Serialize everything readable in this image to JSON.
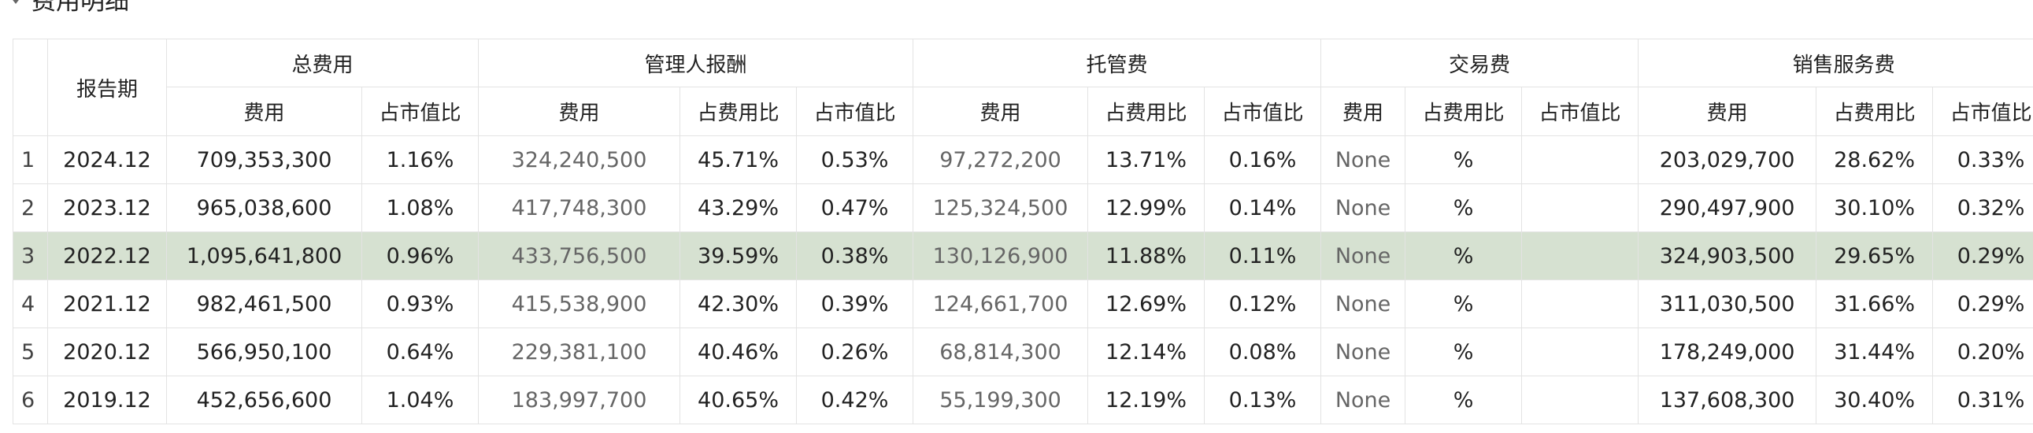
{
  "section": {
    "title": "费用明细"
  },
  "table": {
    "groups": [
      {
        "label": "总费用"
      },
      {
        "label": "管理人报酬"
      },
      {
        "label": "托管费"
      },
      {
        "label": "交易费"
      },
      {
        "label": "销售服务费"
      }
    ],
    "period_header": "报告期",
    "sub_headers": {
      "total": [
        "费用",
        "占市值比"
      ],
      "mgmt": [
        "费用",
        "占费用比",
        "占市值比"
      ],
      "custody": [
        "费用",
        "占费用比",
        "占市值比"
      ],
      "trade": [
        "费用",
        "占费用比",
        "占市值比"
      ],
      "sales": [
        "费用",
        "占费用比",
        "占市值比"
      ]
    },
    "selected_row": 3,
    "rows": [
      {
        "n": "1",
        "period": "2024.12",
        "total_fee": "709,353,300",
        "total_mv": "1.16%",
        "mgmt_fee": "324,240,500",
        "mgmt_fr": "45.71%",
        "mgmt_mv": "0.53%",
        "cust_fee": "97,272,200",
        "cust_fr": "13.71%",
        "cust_mv": "0.16%",
        "trade_fee": "None",
        "trade_fr": "%",
        "trade_mv": "",
        "sales_fee": "203,029,700",
        "sales_fr": "28.62%",
        "sales_mv": "0.33%"
      },
      {
        "n": "2",
        "period": "2023.12",
        "total_fee": "965,038,600",
        "total_mv": "1.08%",
        "mgmt_fee": "417,748,300",
        "mgmt_fr": "43.29%",
        "mgmt_mv": "0.47%",
        "cust_fee": "125,324,500",
        "cust_fr": "12.99%",
        "cust_mv": "0.14%",
        "trade_fee": "None",
        "trade_fr": "%",
        "trade_mv": "",
        "sales_fee": "290,497,900",
        "sales_fr": "30.10%",
        "sales_mv": "0.32%"
      },
      {
        "n": "3",
        "period": "2022.12",
        "total_fee": "1,095,641,800",
        "total_mv": "0.96%",
        "mgmt_fee": "433,756,500",
        "mgmt_fr": "39.59%",
        "mgmt_mv": "0.38%",
        "cust_fee": "130,126,900",
        "cust_fr": "11.88%",
        "cust_mv": "0.11%",
        "trade_fee": "None",
        "trade_fr": "%",
        "trade_mv": "",
        "sales_fee": "324,903,500",
        "sales_fr": "29.65%",
        "sales_mv": "0.29%"
      },
      {
        "n": "4",
        "period": "2021.12",
        "total_fee": "982,461,500",
        "total_mv": "0.93%",
        "mgmt_fee": "415,538,900",
        "mgmt_fr": "42.30%",
        "mgmt_mv": "0.39%",
        "cust_fee": "124,661,700",
        "cust_fr": "12.69%",
        "cust_mv": "0.12%",
        "trade_fee": "None",
        "trade_fr": "%",
        "trade_mv": "",
        "sales_fee": "311,030,500",
        "sales_fr": "31.66%",
        "sales_mv": "0.29%"
      },
      {
        "n": "5",
        "period": "2020.12",
        "total_fee": "566,950,100",
        "total_mv": "0.64%",
        "mgmt_fee": "229,381,100",
        "mgmt_fr": "40.46%",
        "mgmt_mv": "0.26%",
        "cust_fee": "68,814,300",
        "cust_fr": "12.14%",
        "cust_mv": "0.08%",
        "trade_fee": "None",
        "trade_fr": "%",
        "trade_mv": "",
        "sales_fee": "178,249,000",
        "sales_fr": "31.44%",
        "sales_mv": "0.20%"
      },
      {
        "n": "6",
        "period": "2019.12",
        "total_fee": "452,656,600",
        "total_mv": "1.04%",
        "mgmt_fee": "183,997,700",
        "mgmt_fr": "40.65%",
        "mgmt_mv": "0.42%",
        "cust_fee": "55,199,300",
        "cust_fr": "12.19%",
        "cust_mv": "0.13%",
        "trade_fee": "None",
        "trade_fr": "%",
        "trade_mv": "",
        "sales_fee": "137,608,300",
        "sales_fr": "30.40%",
        "sales_mv": "0.31%"
      }
    ]
  }
}
